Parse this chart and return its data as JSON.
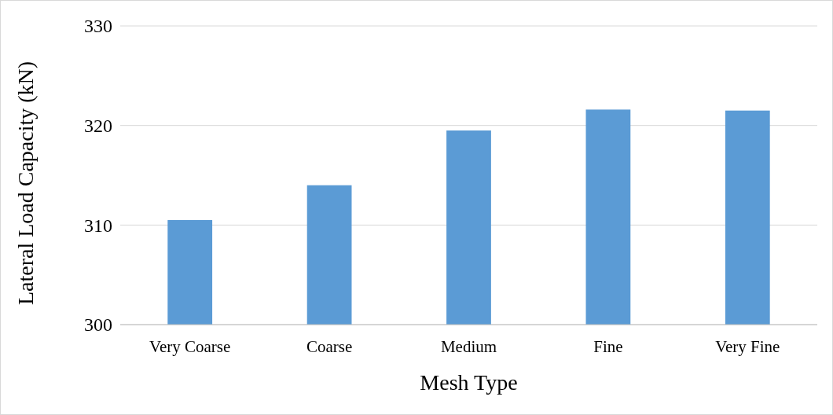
{
  "chart_data": {
    "type": "bar",
    "xlabel": "Mesh Type",
    "ylabel": "Lateral Load Capacity (kN)",
    "categories": [
      "Very Coarse",
      "Coarse",
      "Medium",
      "Fine",
      "Very Fine"
    ],
    "values": [
      310.5,
      314.0,
      319.5,
      321.6,
      321.5
    ],
    "color": "#5b9bd5",
    "ylim": [
      300,
      330
    ],
    "yticks": [
      300,
      310,
      320,
      330
    ],
    "grid": "y"
  }
}
